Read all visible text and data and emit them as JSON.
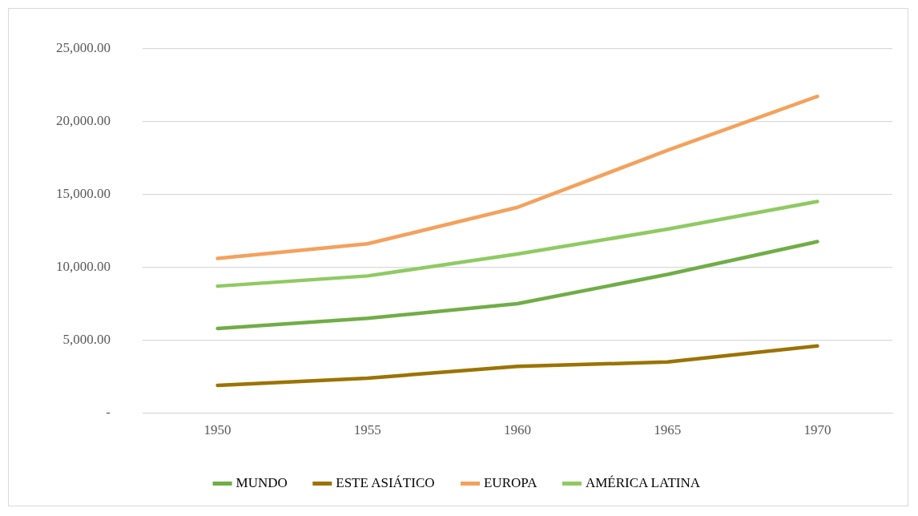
{
  "chart_data": {
    "type": "line",
    "categories": [
      "1950",
      "1955",
      "1960",
      "1965",
      "1970"
    ],
    "series": [
      {
        "name": "MUNDO",
        "color": "#70ad47",
        "values": [
          5800,
          6500,
          7500,
          9500,
          11750
        ]
      },
      {
        "name": "ESTE ASIÁTICO",
        "color": "#9c7300",
        "values": [
          1900,
          2400,
          3200,
          3500,
          4600
        ]
      },
      {
        "name": "EUROPA",
        "color": "#f4a15d",
        "values": [
          10600,
          11600,
          14100,
          18000,
          21700
        ]
      },
      {
        "name": "AMÉRICA LATINA",
        "color": "#8fca62",
        "values": [
          8700,
          9400,
          10900,
          12600,
          14500
        ]
      }
    ],
    "ylim": [
      0,
      25000
    ],
    "yticks": [
      {
        "value": 0,
        "label": "-"
      },
      {
        "value": 5000,
        "label": "5,000.00"
      },
      {
        "value": 10000,
        "label": "10,000.00"
      },
      {
        "value": 15000,
        "label": "15,000.00"
      },
      {
        "value": 20000,
        "label": "20,000.00"
      },
      {
        "value": 25000,
        "label": "25,000.00"
      }
    ],
    "grid": "y",
    "legend": "bottom",
    "marker": "none",
    "line_style": "solid"
  }
}
